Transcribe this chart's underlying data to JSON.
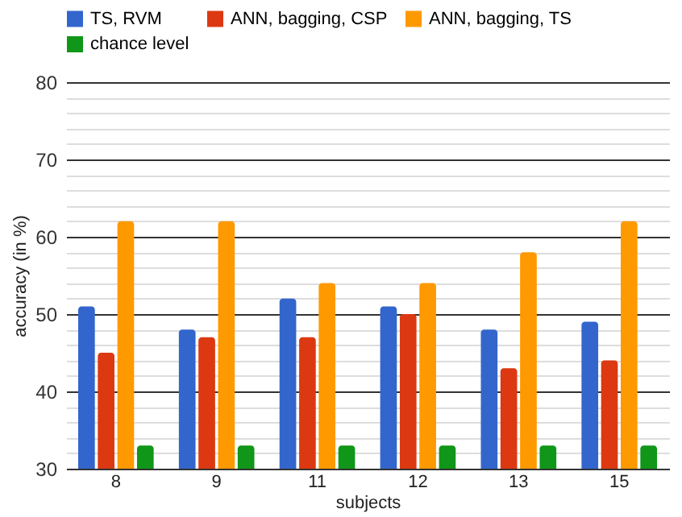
{
  "chart_data": {
    "type": "bar",
    "xlabel": "subjects",
    "ylabel": "accuracy (in %)",
    "categories": [
      "8",
      "9",
      "11",
      "12",
      "13",
      "15"
    ],
    "series": [
      {
        "name": "TS, RVM",
        "color": "#3366cc",
        "values": [
          51,
          48,
          52,
          51,
          48,
          49
        ]
      },
      {
        "name": "ANN, bagging, CSP",
        "color": "#dc3912",
        "values": [
          45,
          47,
          47,
          50,
          43,
          44
        ]
      },
      {
        "name": "ANN, bagging, TS",
        "color": "#ff9900",
        "values": [
          62,
          62,
          54,
          54,
          58,
          62
        ]
      },
      {
        "name": "chance level",
        "color": "#109618",
        "values": [
          33,
          33,
          33,
          33,
          33,
          33
        ]
      }
    ],
    "ylim": [
      30,
      80
    ],
    "yticks": [
      30,
      {
        "value": 32,
        "label": null
      },
      {
        "value": 34,
        "label": null
      },
      {
        "value": 36,
        "label": null
      },
      {
        "value": 38,
        "label": null
      },
      40,
      {
        "value": 42,
        "label": null
      },
      {
        "value": 44,
        "label": null
      },
      {
        "value": 46,
        "label": null
      },
      {
        "value": 48,
        "label": null
      },
      50,
      {
        "value": 52,
        "label": null
      },
      {
        "value": 54,
        "label": null
      },
      {
        "value": 56,
        "label": null
      },
      {
        "value": 58,
        "label": null
      },
      60,
      {
        "value": 62,
        "label": null
      },
      {
        "value": 64,
        "label": null
      },
      {
        "value": 66,
        "label": null
      },
      {
        "value": 68,
        "label": null
      },
      70,
      {
        "value": 72,
        "label": null
      },
      {
        "value": 74,
        "label": null
      },
      {
        "value": 76,
        "label": null
      },
      {
        "value": 78,
        "label": null
      },
      80
    ],
    "grid": true,
    "legend": "top"
  }
}
